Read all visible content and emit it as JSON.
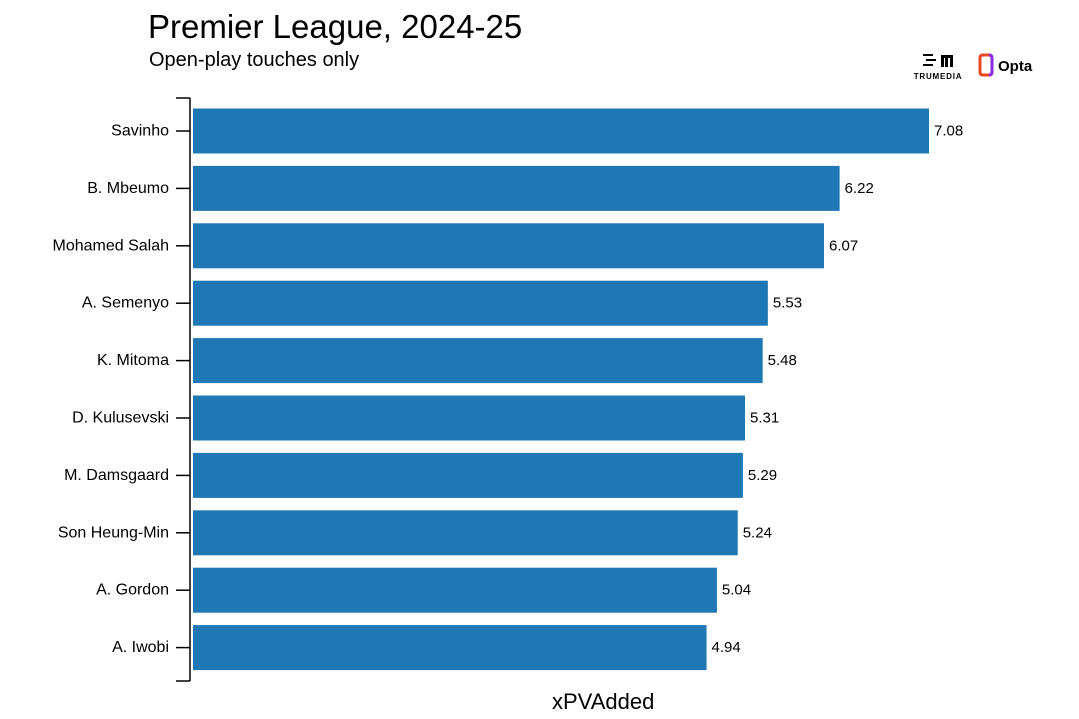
{
  "title": "Premier League, 2024-25",
  "subtitle": "Open-play touches only",
  "logos": {
    "primary_text": "TRUMEDIA",
    "secondary_text": "Opta"
  },
  "colors": {
    "bar": "#1f78b4",
    "axis": "#000000",
    "text": "#000000",
    "background": "#ffffff"
  },
  "chart_data": {
    "type": "bar",
    "orientation": "horizontal",
    "categories": [
      "Savinho",
      "B. Mbeumo",
      "Mohamed Salah",
      "A. Semenyo",
      "K. Mitoma",
      "D. Kulusevski",
      "M. Damsgaard",
      "Son Heung-Min",
      "A. Gordon",
      "A. Iwobi"
    ],
    "values": [
      7.08,
      6.22,
      6.07,
      5.53,
      5.48,
      5.31,
      5.29,
      5.24,
      5.04,
      4.94
    ],
    "value_labels": [
      "7.08",
      "6.22",
      "6.07",
      "5.53",
      "5.48",
      "5.31",
      "5.29",
      "5.24",
      "5.04",
      "4.94"
    ],
    "title": "Premier League, 2024-25",
    "subtitle": "Open-play touches only",
    "xlabel": "xPVAdded",
    "ylabel": "",
    "xlim": [
      0,
      7.08
    ],
    "grid": false,
    "legend": "none"
  }
}
